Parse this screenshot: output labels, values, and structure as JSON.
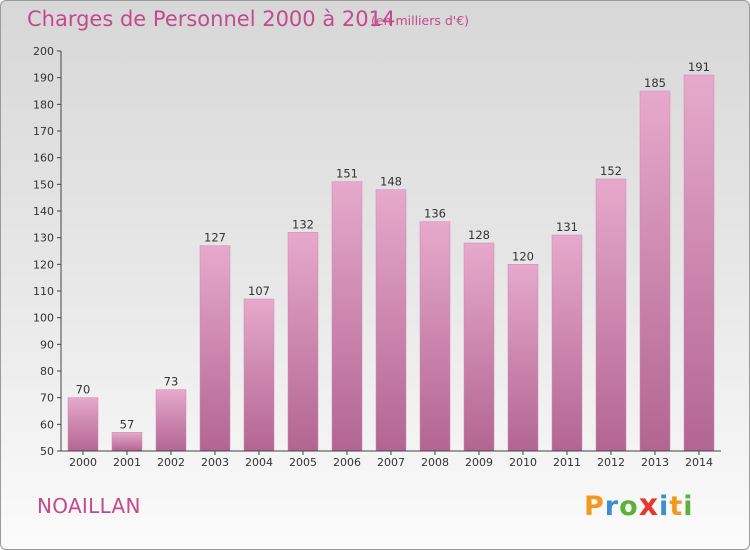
{
  "chart_data": {
    "type": "bar",
    "title": "Charges de Personnel 2000 à 2014",
    "subtitle": "(en milliers d'€)",
    "categories": [
      "2000",
      "2001",
      "2002",
      "2003",
      "2004",
      "2005",
      "2006",
      "2007",
      "2008",
      "2009",
      "2010",
      "2011",
      "2012",
      "2013",
      "2014"
    ],
    "values": [
      70,
      57,
      73,
      127,
      107,
      132,
      151,
      148,
      136,
      128,
      120,
      131,
      152,
      185,
      191
    ],
    "ylim": [
      50,
      200
    ],
    "yticks": [
      50,
      60,
      70,
      80,
      90,
      100,
      110,
      120,
      130,
      140,
      150,
      160,
      170,
      180,
      190,
      200
    ],
    "grid": false,
    "bar_color": "#c96a9e"
  },
  "location": "NOAILLAN",
  "logo": {
    "letters": [
      "P",
      "r",
      "o",
      "x",
      "i",
      "t",
      "i"
    ],
    "colors": [
      "#f29a1f",
      "#3b8fd1",
      "#5db13b",
      "#e8372e",
      "#3b8fd1",
      "#f29a1f",
      "#5db13b"
    ]
  }
}
